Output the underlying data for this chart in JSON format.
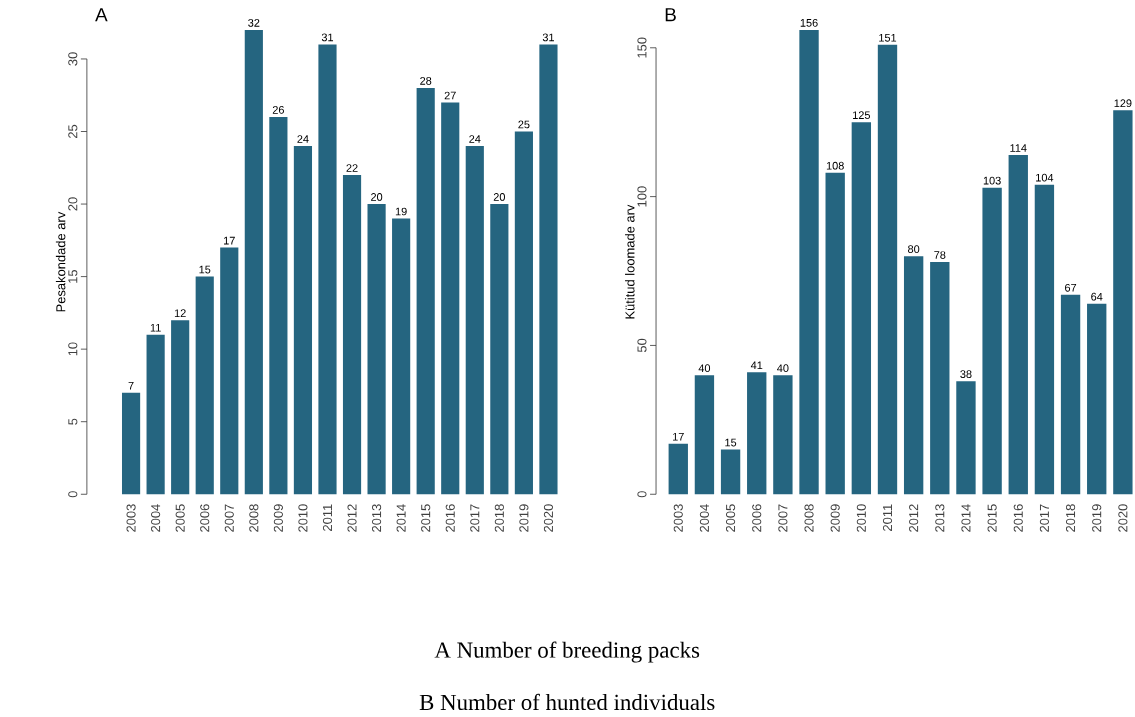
{
  "chart_data": [
    {
      "type": "bar",
      "title": "A",
      "ylabel": "Pesakondade arv",
      "categories": [
        "2003",
        "2004",
        "2005",
        "2006",
        "2007",
        "2008",
        "2009",
        "2010",
        "2011",
        "2012",
        "2013",
        "2014",
        "2015",
        "2016",
        "2017",
        "2018",
        "2019",
        "2020"
      ],
      "values": [
        7,
        11,
        12,
        15,
        17,
        32,
        26,
        24,
        31,
        22,
        20,
        19,
        28,
        27,
        24,
        20,
        25,
        31
      ],
      "color": "#256580",
      "ylim": [
        0,
        32
      ],
      "yticks": [
        0,
        5,
        10,
        15,
        20,
        25,
        30
      ],
      "data_labels": true,
      "annotations": [
        "A Number of breeding packs"
      ]
    },
    {
      "type": "bar",
      "title": "B",
      "ylabel": "Kütitud loomade arv",
      "categories": [
        "2003",
        "2004",
        "2005",
        "2006",
        "2007",
        "2008",
        "2009",
        "2010",
        "2011",
        "2012",
        "2013",
        "2014",
        "2015",
        "2016",
        "2017",
        "2018",
        "2019",
        "2020"
      ],
      "values": [
        17,
        40,
        15,
        41,
        40,
        156,
        108,
        125,
        151,
        80,
        78,
        38,
        103,
        114,
        104,
        67,
        64,
        129
      ],
      "color": "#256580",
      "ylim": [
        0,
        156
      ],
      "yticks": [
        0,
        50,
        100,
        150
      ],
      "data_labels": true,
      "annotations": [
        "B  Number of hunted individuals"
      ]
    }
  ]
}
